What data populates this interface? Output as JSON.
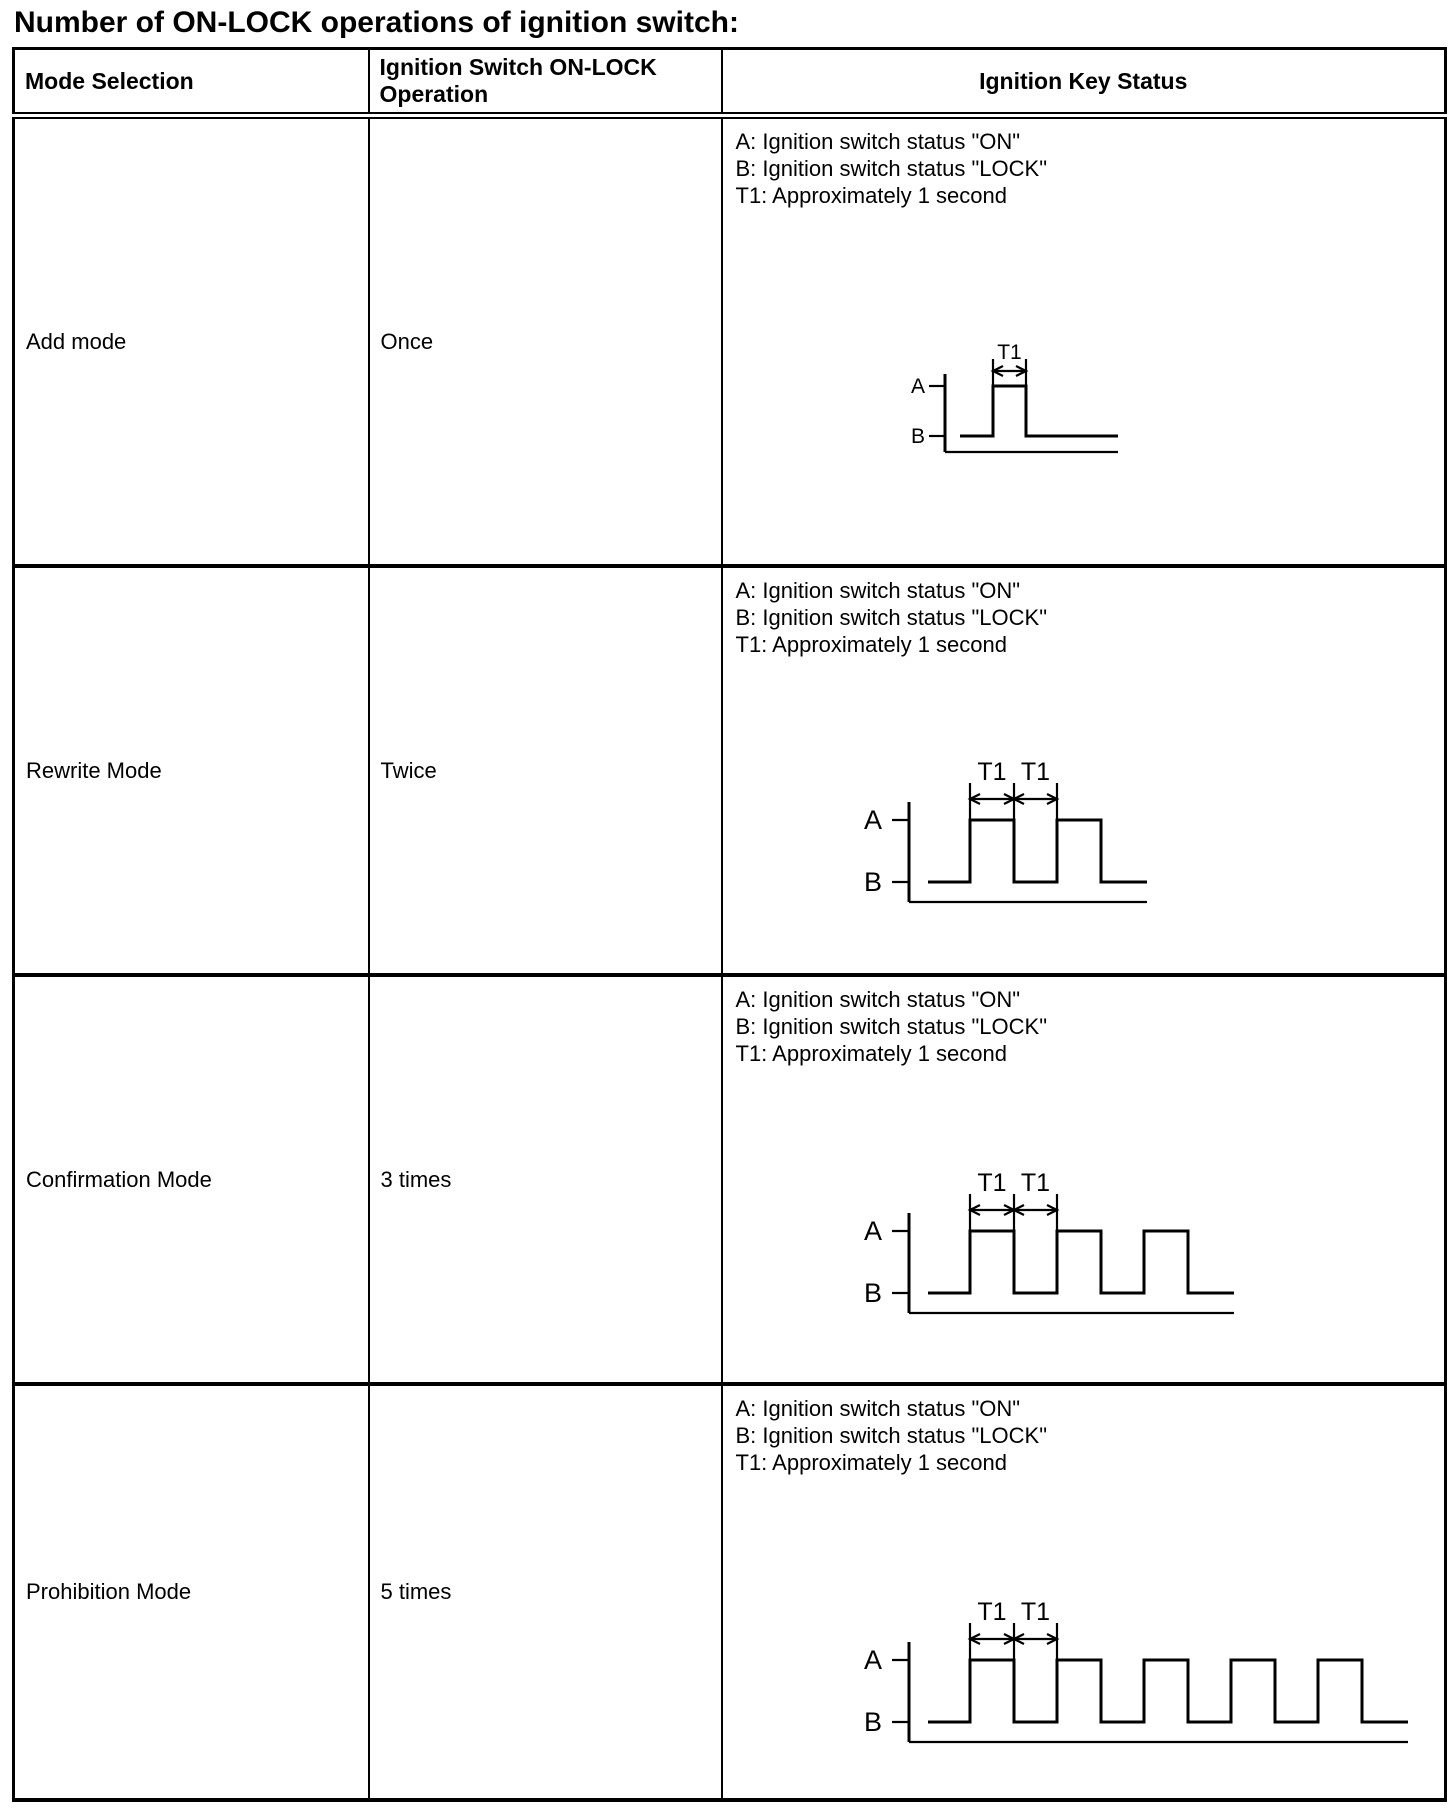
{
  "title": "Number of ON-LOCK operations of ignition switch:",
  "table": {
    "headers": [
      "Mode Selection",
      "Ignition Switch ON-LOCK Operation",
      "Ignition Key Status"
    ],
    "rows": [
      {
        "mode": "Add mode",
        "operation": "Once",
        "legend": [
          "A: Ignition switch status \"ON\"",
          "B: Ignition switch status \"LOCK\"",
          "T1: Approximately 1 second"
        ],
        "waveform": {
          "type": "pulse-train",
          "pulses": 1,
          "t1_arrow_count": 1,
          "size": "small",
          "high_label": "A",
          "low_label": "B",
          "t1_label": "T1"
        }
      },
      {
        "mode": "Rewrite Mode",
        "operation": "Twice",
        "legend": [
          "A: Ignition switch status \"ON\"",
          "B: Ignition switch status \"LOCK\"",
          "T1: Approximately 1 second"
        ],
        "waveform": {
          "type": "pulse-train",
          "pulses": 2,
          "t1_arrow_count": 2,
          "size": "large",
          "high_label": "A",
          "low_label": "B",
          "t1_label": "T1"
        }
      },
      {
        "mode": "Confirmation Mode",
        "operation": "3 times",
        "legend": [
          "A: Ignition switch status \"ON\"",
          "B: Ignition switch status \"LOCK\"",
          "T1: Approximately 1 second"
        ],
        "waveform": {
          "type": "pulse-train",
          "pulses": 3,
          "t1_arrow_count": 2,
          "size": "large",
          "high_label": "A",
          "low_label": "B",
          "t1_label": "T1"
        }
      },
      {
        "mode": "Prohibition Mode",
        "operation": "5 times",
        "legend": [
          "A: Ignition switch status \"ON\"",
          "B: Ignition switch status \"LOCK\"",
          "T1: Approximately 1 second"
        ],
        "waveform": {
          "type": "pulse-train",
          "pulses": 5,
          "t1_arrow_count": 2,
          "size": "large",
          "high_label": "A",
          "low_label": "B",
          "t1_label": "T1"
        }
      }
    ]
  },
  "colors": {
    "ink": "#000000",
    "background": "#ffffff"
  }
}
